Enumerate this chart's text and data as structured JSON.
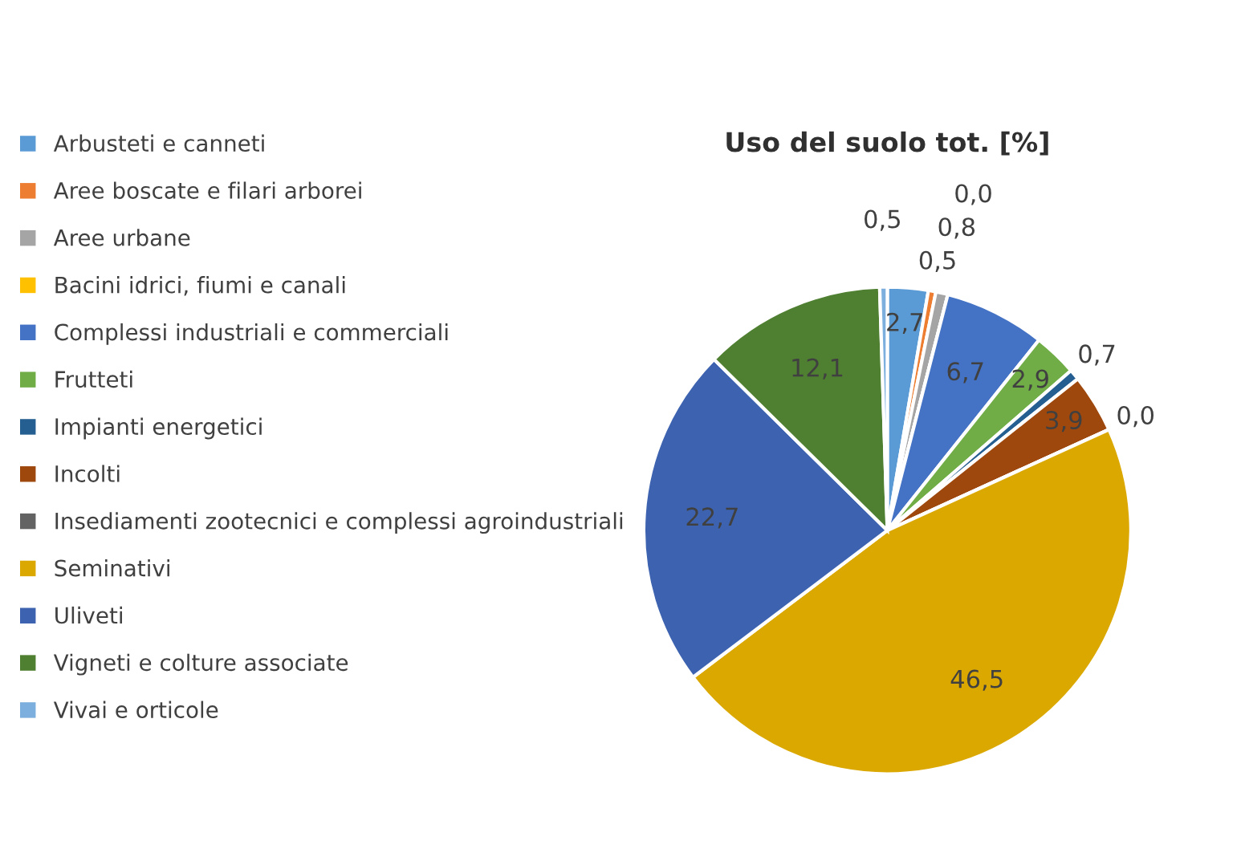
{
  "chart_data": {
    "type": "pie",
    "title": "Uso del suolo tot. [%]",
    "categories": [
      "Arbusteti e canneti",
      "Aree boscate e filari arborei",
      "Aree urbane",
      "Bacini idrici, fiumi e canali",
      "Complessi industriali e commerciali",
      "Frutteti",
      "Impianti energetici",
      "Incolti",
      "Insediamenti zootecnici e complessi agroindustriali",
      "Seminativi",
      "Uliveti",
      "Vigneti e colture associate",
      "Vivai e orticole"
    ],
    "values": [
      2.7,
      0.5,
      0.8,
      0.0,
      6.7,
      2.9,
      0.7,
      3.9,
      0.0,
      46.5,
      22.7,
      12.1,
      0.5
    ],
    "value_labels": [
      "2,7",
      "0,5",
      "0,8",
      "0,0",
      "6,7",
      "2,9",
      "0,7",
      "3,9",
      "0,0",
      "46,5",
      "22,7",
      "12,1",
      "0,5"
    ],
    "colors": [
      "#5b9bd5",
      "#ed7d31",
      "#a5a5a5",
      "#ffc000",
      "#4472c4",
      "#70ad47",
      "#255e91",
      "#9e480e",
      "#636363",
      "#dba800",
      "#3d63b0",
      "#4f7f30",
      "#7cafdd"
    ],
    "legend": "left"
  }
}
